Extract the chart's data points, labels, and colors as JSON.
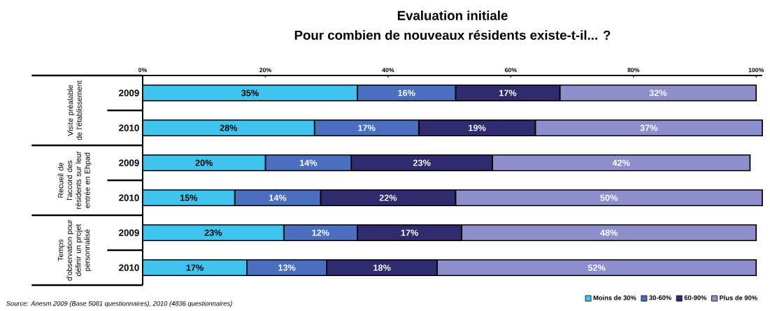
{
  "chart_data": {
    "type": "bar",
    "orientation": "horizontal",
    "stacked": true,
    "title": "Evaluation initiale",
    "subtitle": "Pour combien de nouveaux résidents existe-t-il... ?",
    "categories": [
      "2009",
      "2010",
      "2009",
      "2010",
      "2009",
      "2010"
    ],
    "series": [
      {
        "name": "Moins de 30%",
        "color": "#3ec4ee",
        "values": [
          35,
          28,
          20,
          15,
          23,
          17
        ],
        "value_labels": [
          "35%",
          "28%",
          "20%",
          "15%",
          "23%",
          "17%"
        ]
      },
      {
        "name": "30-60%",
        "color": "#4a6fbe",
        "values": [
          16,
          17,
          14,
          14,
          12,
          13
        ],
        "value_labels": [
          "16%",
          "17%",
          "14%",
          "14%",
          "12%",
          "13%"
        ]
      },
      {
        "name": "60-90%",
        "color": "#302b6e",
        "values": [
          17,
          19,
          23,
          22,
          17,
          18
        ],
        "value_labels": [
          "17%",
          "19%",
          "23%",
          "22%",
          "17%",
          "18%"
        ]
      },
      {
        "name": "Plus de 90%",
        "color": "#8e8ecd",
        "values": [
          32,
          37,
          42,
          50,
          48,
          52
        ],
        "value_labels": [
          "32%",
          "37%",
          "42%",
          "50%",
          "48%",
          "52%"
        ]
      }
    ],
    "xlim": [
      0,
      101
    ],
    "xticks": [
      {
        "value": 0,
        "label": "0%"
      },
      {
        "value": 20,
        "label": "20%"
      },
      {
        "value": 40,
        "label": "40%"
      },
      {
        "value": 60,
        "label": "60%"
      },
      {
        "value": 80,
        "label": "80%"
      },
      {
        "value": 100,
        "label": "100%"
      }
    ],
    "legend": "bottom right",
    "annotations": [
      "Visite préalable de l'établissement",
      "Recueil de l'accord des résidents sur leur entrée en Ehpad",
      "Temps d'observation pour définir un projet personnalisé",
      "Source: Anesm 2009 (Base 5081 questionnaires), 2010 (4836 questionnaires)"
    ]
  }
}
